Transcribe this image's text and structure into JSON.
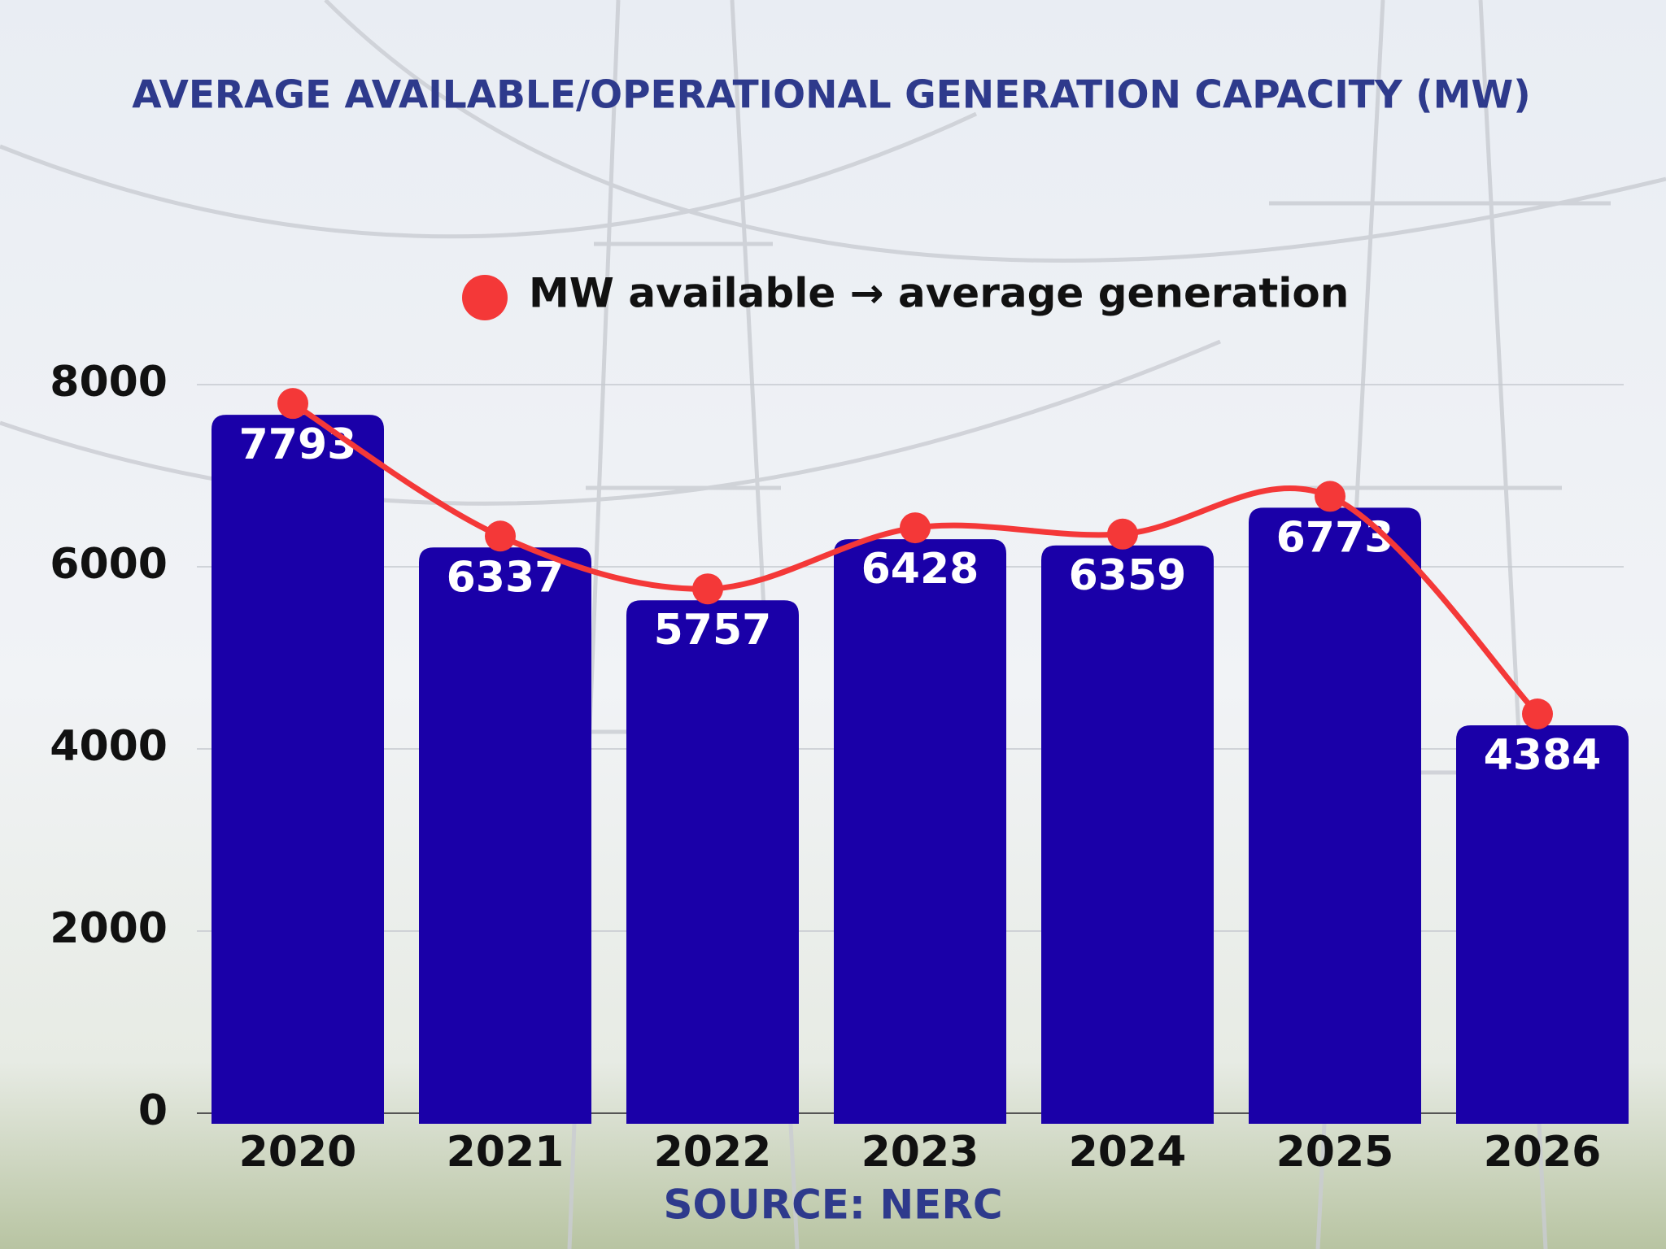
{
  "chart_data": {
    "type": "bar",
    "title": "AVERAGE AVAILABLE/OPERATIONAL GENERATION CAPACITY (MW)",
    "source": "SOURCE: NERC",
    "categories": [
      "2020",
      "2021",
      "2022",
      "2023",
      "2024",
      "2025",
      "2026"
    ],
    "series": [
      {
        "type": "bar",
        "color": "#1a00a8",
        "values": [
          7793,
          6337,
          5757,
          6428,
          6359,
          6773,
          4384
        ]
      },
      {
        "type": "line",
        "name": "MW available → average generation",
        "color": "#f43838",
        "values": [
          7793,
          6337,
          5757,
          6428,
          6359,
          6773,
          4384
        ]
      }
    ],
    "ylim": [
      0,
      8000
    ],
    "yticks": [
      0,
      2000,
      4000,
      6000,
      8000
    ],
    "grid": true
  }
}
